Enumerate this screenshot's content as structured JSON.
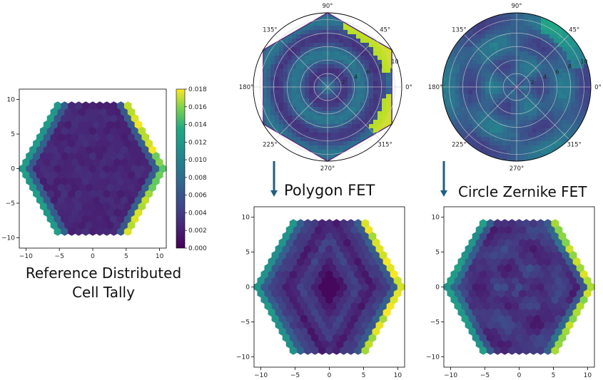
{
  "captions": {
    "reference_line1": "Reference Distributed",
    "reference_line2": "Cell Tally",
    "polygon": "Polygon FET",
    "circle": "Circle Zernike FET"
  },
  "colors": {
    "arrow": "#1f5f7f",
    "axis": "#000000",
    "grid": "#d9d9d9",
    "colormap": "viridis"
  },
  "chart_data": [
    {
      "id": "reference",
      "type": "heatmap",
      "title": "",
      "xlabel": "",
      "ylabel": "",
      "xlim": [
        -11,
        11
      ],
      "ylim": [
        -11.5,
        11.5
      ],
      "xticks": [
        "−10",
        "−5",
        "0",
        "5",
        "10"
      ],
      "xtick_values": [
        -10,
        -5,
        0,
        5,
        10
      ],
      "yticks": [
        "10",
        "5",
        "0",
        "−5",
        "−10"
      ],
      "ytick_values": [
        10,
        5,
        0,
        -5,
        -10
      ],
      "grid": false,
      "colormap": "viridis",
      "colorbar": {
        "vmin": 0,
        "vmax": 0.018,
        "ticks": [
          "0.000",
          "0.002",
          "0.004",
          "0.006",
          "0.008",
          "0.010",
          "0.012",
          "0.014",
          "0.016",
          "0.018"
        ]
      },
      "values": "hexagonal assembly of pins, ~0.001–0.003 interior, peaking ~0.018 along upper-right and lower-right outer faces"
    },
    {
      "id": "polygon_fet_polar",
      "type": "heatmap",
      "title": "",
      "coordinate": "polar",
      "angle_labels": [
        "90°",
        "45°",
        "0°",
        "315°",
        "270°",
        "225°",
        "180°",
        "135°"
      ],
      "angle_values": [
        90,
        45,
        0,
        315,
        270,
        225,
        180,
        135
      ],
      "radial_labels": [
        "2",
        "4",
        "6",
        "8",
        "10"
      ],
      "radial_values": [
        2,
        4,
        6,
        8,
        10
      ],
      "domain": "hexagon",
      "hot_faces_deg": [
        30,
        -30
      ]
    },
    {
      "id": "circle_zernike_polar",
      "type": "heatmap",
      "title": "",
      "coordinate": "polar",
      "angle_labels": [
        "90°",
        "45°",
        "0°",
        "315°",
        "270°",
        "225°",
        "180°",
        "135°"
      ],
      "angle_values": [
        90,
        45,
        0,
        315,
        270,
        225,
        180,
        135
      ],
      "radial_labels": [
        "2",
        "4",
        "6",
        "8",
        "10"
      ],
      "radial_values": [
        2,
        4,
        6,
        8,
        10
      ],
      "domain": "circle"
    },
    {
      "id": "polygon_fet_hex",
      "type": "heatmap",
      "title": "",
      "xticks": [
        "−10",
        "−5",
        "0",
        "5",
        "10"
      ],
      "xtick_values": [
        -10,
        -5,
        0,
        5,
        10
      ],
      "yticks": [
        "10",
        "5",
        "0",
        "−5",
        "−10"
      ],
      "ytick_values": [
        10,
        5,
        0,
        -5,
        -10
      ],
      "grid": false
    },
    {
      "id": "circle_zernike_hex",
      "type": "heatmap",
      "title": "",
      "xticks": [
        "−10",
        "−5",
        "0",
        "5",
        "10"
      ],
      "xtick_values": [
        -10,
        -5,
        0,
        5,
        10
      ],
      "yticks": [
        "10",
        "5",
        "0",
        "−5",
        "−10"
      ],
      "ytick_values": [
        10,
        5,
        0,
        -5,
        -10
      ],
      "grid": false
    }
  ]
}
